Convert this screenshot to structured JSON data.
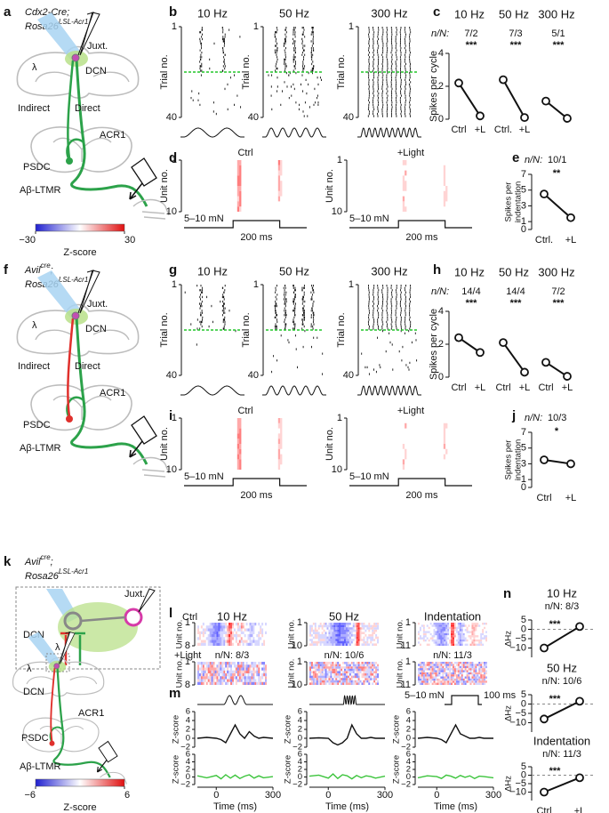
{
  "a": {
    "letter": "a",
    "genotype": [
      [
        {
          "text": "Cdx2-Cre;"
        }
      ],
      [
        {
          "text": "Rosa26"
        },
        {
          "text": "LSL-Acr1",
          "sup": true
        }
      ]
    ],
    "labels": {
      "lambda": "λ",
      "juxt": "Juxt.",
      "dcn": "DCN",
      "indirect": "Indirect",
      "direct": "Direct",
      "acr1": "ACR1",
      "psdc": "PSDC",
      "ltmr": "Aβ-LTMR"
    },
    "colorbar": {
      "ticks": [
        {
          "value": -30,
          "label": "−30"
        },
        30
      ],
      "label": "Z-score"
    }
  },
  "b": {
    "letter": "b",
    "titles": [
      "10 Hz",
      "50 Hz",
      "300 Hz"
    ],
    "ylabel": "Trial no.",
    "yticks": [
      1,
      40
    ]
  },
  "c": {
    "letter": "c",
    "nN": "n/N:",
    "ylabel": "Spikes per cycle",
    "ylim": [
      0,
      4
    ],
    "yticks": [
      0,
      2,
      4
    ],
    "charts": [
      {
        "title": "10 Hz",
        "n": "7/2",
        "sig": "***",
        "categories": [
          "Ctrl",
          "+L"
        ],
        "values": [
          2.2,
          0.2
        ]
      },
      {
        "title": "50 Hz",
        "n": "7/3",
        "sig": "***",
        "categories": [
          "Ctrl.",
          "+L"
        ],
        "values": [
          2.4,
          0.1
        ]
      },
      {
        "title": "300 Hz",
        "n": "5/1",
        "sig": "***",
        "categories": [
          null,
          null
        ],
        "values": [
          1.1,
          0.05
        ]
      }
    ]
  },
  "d": {
    "letter": "d",
    "titles": [
      "Ctrl",
      "+Light"
    ],
    "ylabel": "Unit no.",
    "yticks": [
      1,
      10
    ],
    "force": "5–10 mN",
    "time": "200 ms"
  },
  "e": {
    "letter": "e",
    "nN": "n/N:",
    "n": "10/1",
    "sig": "**",
    "ylabel": [
      "Spikes per",
      "indentation"
    ],
    "ylim": [
      0,
      7
    ],
    "yticks": [
      0,
      1,
      3,
      5,
      7
    ],
    "categories": [
      "Ctrl.",
      "+L"
    ],
    "values": [
      4.5,
      1.5
    ]
  },
  "f": {
    "letter": "f",
    "genotype": [
      [
        {
          "text": "Avil"
        },
        {
          "text": "cre",
          "sup": true
        },
        {
          "text": ";"
        }
      ],
      [
        {
          "text": "Rosa26"
        },
        {
          "text": "LSL-Acr1",
          "sup": true
        }
      ]
    ],
    "labels": {
      "lambda": "λ",
      "juxt": "Juxt.",
      "dcn": "DCN",
      "indirect": "Indirect",
      "direct": "Direct",
      "acr1": "ACR1",
      "psdc": "PSDC",
      "ltmr": "Aβ-LTMR"
    }
  },
  "g": {
    "letter": "g",
    "titles": [
      "10 Hz",
      "50 Hz",
      "300 Hz"
    ],
    "ylabel": "Trial no.",
    "yticks": [
      1,
      40
    ]
  },
  "h": {
    "letter": "h",
    "nN": "n/N:",
    "ylabel": "Spikes per cycle",
    "ylim": [
      0,
      4
    ],
    "yticks": [
      0,
      2,
      4
    ],
    "charts": [
      {
        "title": "10 Hz",
        "n": "14/4",
        "sig": "***",
        "categories": [
          "Ctrl",
          "+L"
        ],
        "values": [
          2.4,
          1.5
        ]
      },
      {
        "title": "50 Hz",
        "n": "14/4",
        "sig": "***",
        "categories": [
          "Ctrl",
          "+L"
        ],
        "values": [
          2.1,
          0.3
        ]
      },
      {
        "title": "300 Hz",
        "n": "7/2",
        "sig": "***",
        "categories": [
          "Ctrl",
          "+L"
        ],
        "values": [
          0.9,
          0.05
        ]
      }
    ]
  },
  "i": {
    "letter": "i",
    "titles": [
      "Ctrl",
      "+Light"
    ],
    "ylabel": "Unit no.",
    "yticks": [
      1,
      10
    ],
    "force": "5–10 mN",
    "time": "200 ms"
  },
  "j": {
    "letter": "j",
    "nN": "n/N:",
    "n": "10/3",
    "sig": "*",
    "ylabel": [
      "Spikes per",
      "indentation"
    ],
    "ylim": [
      0,
      7
    ],
    "yticks": [
      0,
      1,
      3,
      5,
      7
    ],
    "categories": [
      "Ctrl",
      "+L"
    ],
    "values": [
      3.5,
      3.0
    ]
  },
  "k": {
    "letter": "k",
    "genotype": [
      [
        {
          "text": "Avil"
        },
        {
          "text": "cre",
          "sup": true
        },
        {
          "text": ";"
        }
      ],
      [
        {
          "text": "Rosa26"
        },
        {
          "text": "LSL-Acr1",
          "sup": true
        }
      ]
    ],
    "inset": {
      "juxt": "Juxt.",
      "dcn": "DCN",
      "lambda": "λ"
    },
    "labels": {
      "lambda": "λ",
      "dcn": "DCN",
      "acr1": "ACR1",
      "psdc": "PSDC",
      "ltmr": "Aβ-LTMR"
    },
    "colorbar": {
      "ticks": [
        {
          "value": -6,
          "label": "−6"
        },
        6
      ],
      "label": "Z-score"
    }
  },
  "l": {
    "letter": "l",
    "rowLabels": [
      "Ctrl",
      "+Light"
    ],
    "titles": [
      "10 Hz",
      "50 Hz",
      "Indentation"
    ],
    "nN": [
      "n/N: 8/3",
      "n/N: 10/6",
      "n/N: 11/3"
    ],
    "ylabel": "Unit no.",
    "yticks": [
      [
        1,
        8
      ],
      [
        1,
        10
      ],
      [
        1,
        11
      ]
    ]
  },
  "m": {
    "letter": "m",
    "force": "5–10 mN",
    "time": "100 ms",
    "ylabel": "Z-score",
    "xlabel": "Time (ms)",
    "xlim": [
      -100,
      300
    ],
    "xticks": [
      0,
      300
    ],
    "ylim": [
      -2,
      6
    ],
    "yticks": [
      {
        "value": -2,
        "label": "−2"
      },
      0,
      2,
      4,
      6
    ],
    "x": [
      -100,
      -50,
      0,
      25,
      50,
      75,
      100,
      125,
      150,
      175,
      200,
      225,
      250,
      300
    ],
    "rows": [
      {
        "color": "#111111",
        "values": [
          [
            0,
            0.2,
            0,
            -0.3,
            -1,
            1,
            3,
            1,
            0,
            1.5,
            0.5,
            0,
            0.2,
            0
          ],
          [
            0,
            0.1,
            0,
            -1,
            -1.5,
            -1,
            0,
            3,
            1,
            0,
            0,
            0.2,
            0,
            0
          ],
          [
            0,
            0.2,
            0,
            -0.3,
            -1,
            1,
            3,
            1,
            0.5,
            0,
            0,
            0.2,
            0,
            0
          ]
        ]
      },
      {
        "color": "#3cc43c",
        "values": [
          [
            0.3,
            -0.2,
            0.4,
            -0.5,
            0.6,
            -0.3,
            0.5,
            -0.4,
            0.2,
            0.6,
            -0.3,
            0.3,
            -0.2,
            0.1
          ],
          [
            0.2,
            0.5,
            -0.3,
            0.8,
            -0.4,
            0.6,
            0.3,
            -0.5,
            0.4,
            -0.2,
            0.3,
            0.1,
            -0.3,
            0.2
          ],
          [
            -0.2,
            0.3,
            0.1,
            -0.4,
            0.5,
            0.2,
            -0.3,
            0.4,
            -0.1,
            0.3,
            -0.4,
            0.2,
            0.1,
            -0.2
          ]
        ]
      }
    ]
  },
  "n": {
    "letter": "n",
    "ylabel": "ΔHz",
    "ylim": [
      -15,
      5
    ],
    "yticks": [
      {
        "value": -10,
        "label": "−10"
      },
      {
        "value": -5,
        "label": "−5"
      },
      0,
      5
    ],
    "zero_line": true,
    "categories": [
      "Ctrl",
      "+L"
    ],
    "charts": [
      {
        "title": "10 Hz",
        "n": "n/N: 8/3",
        "sig": "***",
        "values": [
          -10,
          1.5
        ]
      },
      {
        "title": "50 Hz",
        "n": "n/N: 10/6",
        "sig": "***",
        "values": [
          -8,
          1.5
        ]
      },
      {
        "title": "Indentation",
        "n": "n/N: 11/3",
        "sig": "***",
        "values": [
          -10,
          -1.5
        ]
      }
    ]
  }
}
